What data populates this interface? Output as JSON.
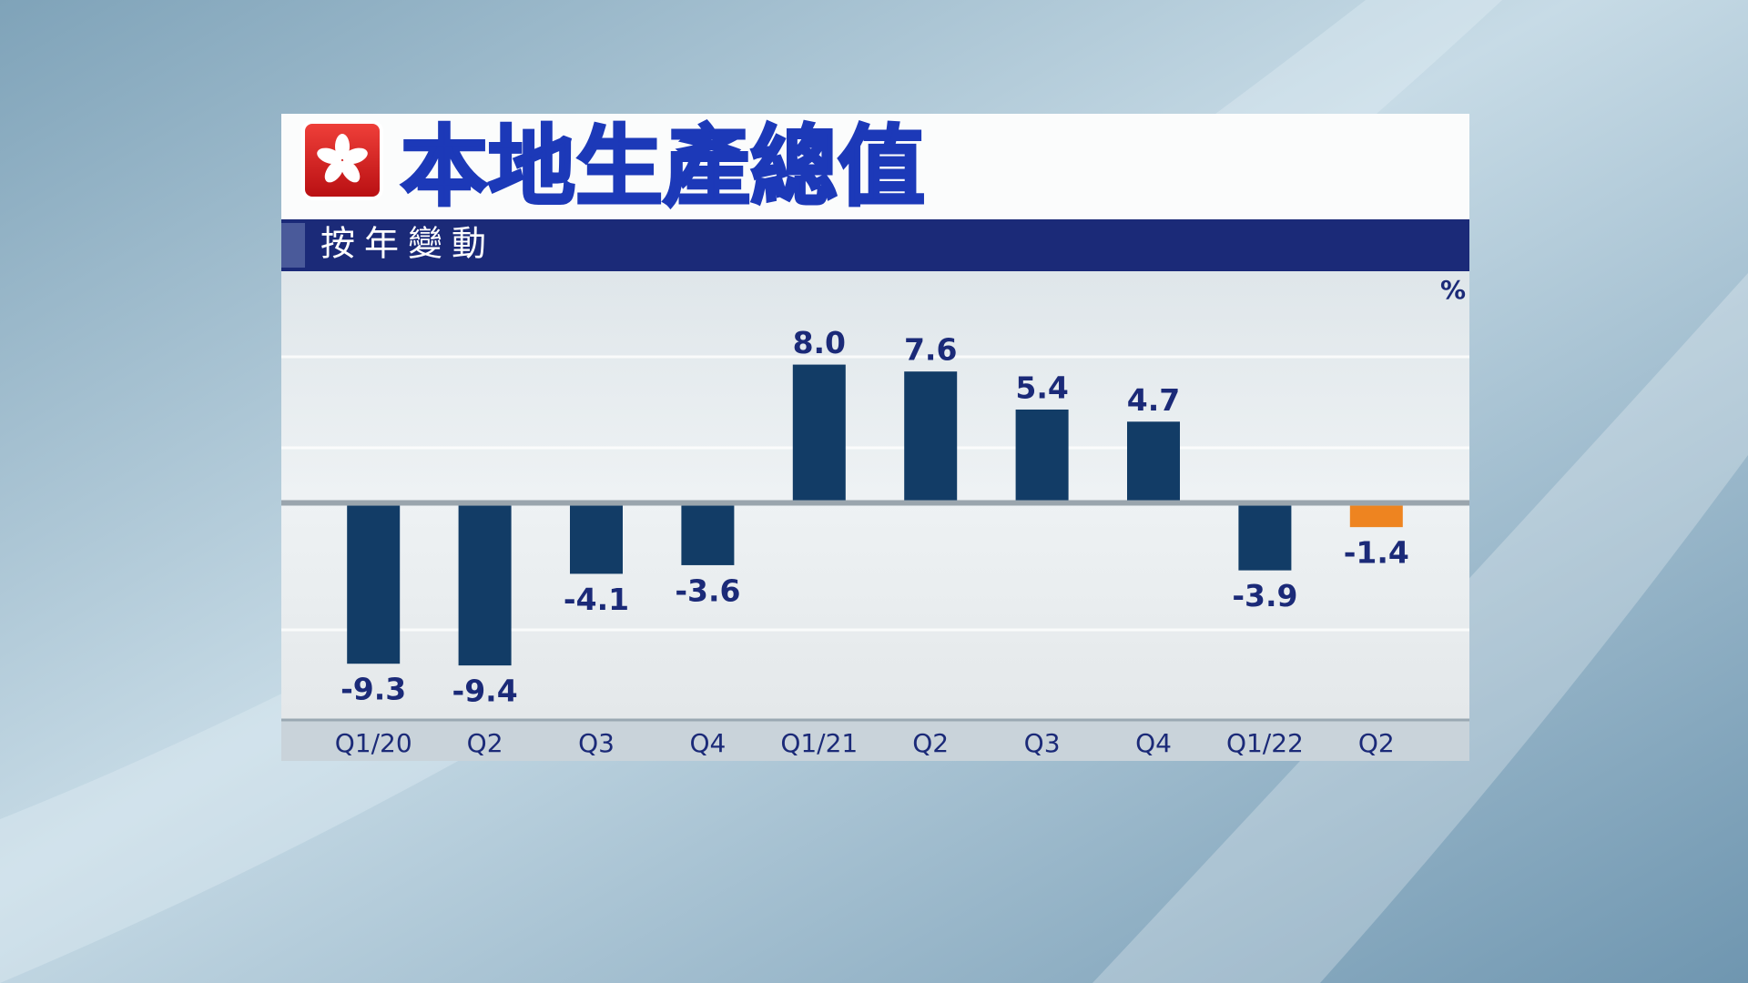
{
  "chart_data": {
    "type": "bar",
    "title": "本地生產總值",
    "subtitle": "按年變動",
    "unit": "%",
    "categories": [
      "Q1/20",
      "Q2",
      "Q3",
      "Q4",
      "Q1/21",
      "Q2",
      "Q3",
      "Q4",
      "Q1/22",
      "Q2"
    ],
    "values": [
      -9.3,
      -9.4,
      -4.1,
      -3.6,
      8.0,
      7.6,
      5.4,
      4.7,
      -3.9,
      -1.4
    ],
    "value_labels": [
      "-9.3",
      "-9.4",
      "-4.1",
      "-3.6",
      "8.0",
      "7.6",
      "5.4",
      "4.7",
      "-3.9",
      "-1.4"
    ],
    "colors": [
      "#123c66",
      "#123c66",
      "#123c66",
      "#123c66",
      "#123c66",
      "#123c66",
      "#123c66",
      "#123c66",
      "#123c66",
      "#ee8420"
    ],
    "ylim": [
      -12.5,
      13.4
    ]
  }
}
